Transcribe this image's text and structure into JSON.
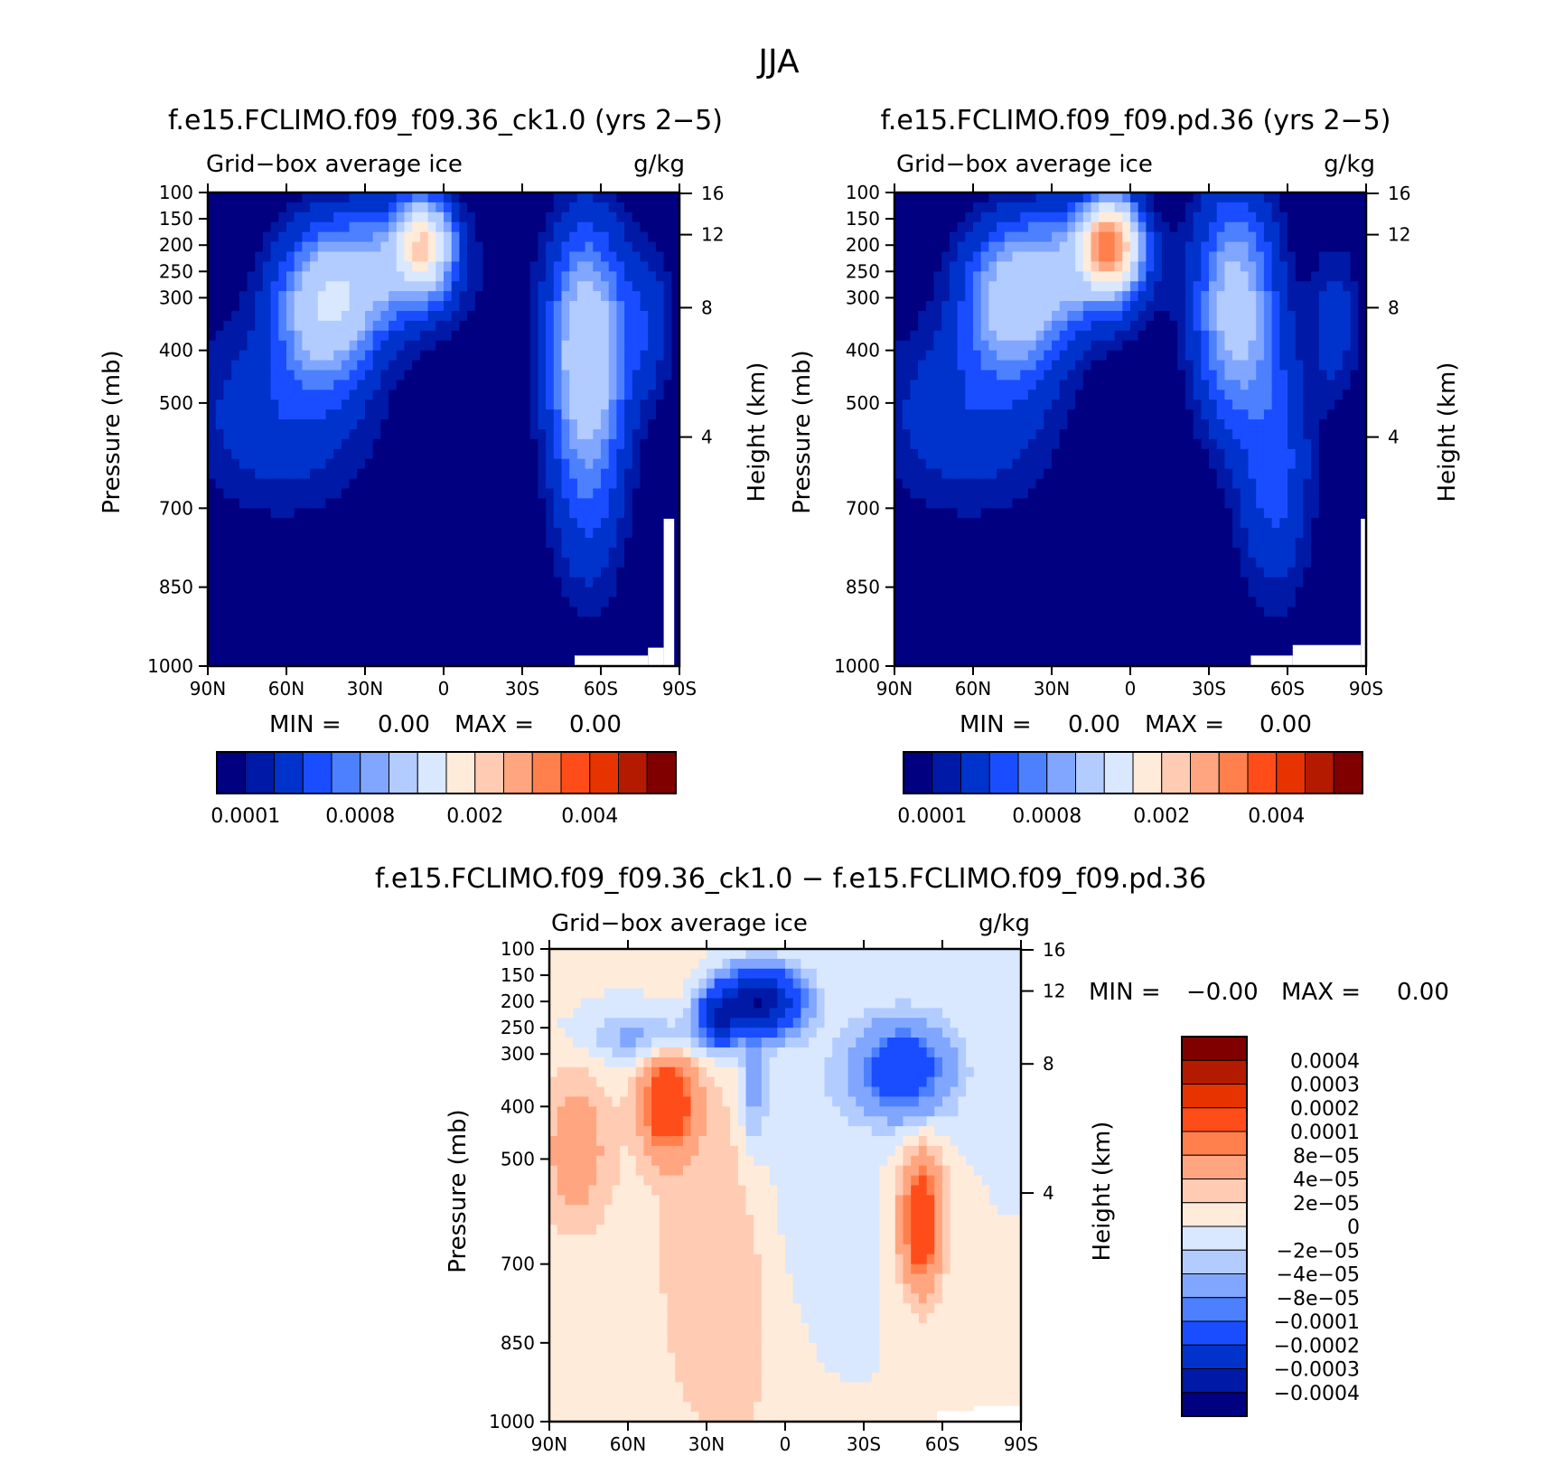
{
  "figure": {
    "title": "JJA",
    "colors": {
      "abs_levels": [
        "#000080",
        "#0019a6",
        "#0033cc",
        "#1a4dff",
        "#4d80ff",
        "#80a6ff",
        "#b3ccff",
        "#d9e8ff",
        "#ffebd9",
        "#ffccb3",
        "#ffa680",
        "#ff7f4d",
        "#ff4d1a",
        "#e63300",
        "#b31a00",
        "#800000"
      ],
      "diff_levels": [
        "#000080",
        "#0019a6",
        "#0033cc",
        "#1a4dff",
        "#4d80ff",
        "#80a6ff",
        "#b3ccff",
        "#d9e8ff",
        "#ffebd9",
        "#ffccb3",
        "#ffa680",
        "#ff7f4d",
        "#ff4d1a",
        "#e63300",
        "#b31a00",
        "#800000"
      ]
    }
  },
  "chart_data": [
    {
      "type": "heatmap",
      "title": "f.e15.FCLIMO.f09_f09.36_ck1.0 (yrs 2−5)",
      "variable": "Grid−box average ice",
      "units": "g/kg",
      "ylabel": "Pressure (mb)",
      "y2label": "Height (km)",
      "xticks": [
        "90N",
        "60N",
        "30N",
        "0",
        "30S",
        "60S",
        "90S"
      ],
      "yticks": [
        "100",
        "150",
        "200",
        "250",
        "300",
        "400",
        "500",
        "700",
        "850",
        "1000"
      ],
      "ylim": [
        1000,
        100
      ],
      "y2ticks": [
        "16",
        "12",
        "8",
        "4"
      ],
      "min_label": "MIN =",
      "min_value": "0.00",
      "max_label": "MAX =",
      "max_value": "0.00",
      "colorbar_labels": [
        "0.0001",
        "0.0008",
        "0.002",
        "0.004"
      ],
      "features": [
        {
          "lat": 8,
          "p": 200,
          "peak": 0.0022
        },
        {
          "lat": 45,
          "p": 330,
          "peak": 0.0012
        },
        {
          "lat": -55,
          "p": 380,
          "peak": 0.0013
        }
      ]
    },
    {
      "type": "heatmap",
      "title": "f.e15.FCLIMO.f09_f09.pd.36 (yrs 2−5)",
      "variable": "Grid−box average ice",
      "units": "g/kg",
      "ylabel": "Pressure (mb)",
      "y2label": "Height (km)",
      "xticks": [
        "90N",
        "60N",
        "30N",
        "0",
        "30S",
        "60S",
        "90S"
      ],
      "yticks": [
        "100",
        "150",
        "200",
        "250",
        "300",
        "400",
        "500",
        "700",
        "850",
        "1000"
      ],
      "ylim": [
        1000,
        100
      ],
      "y2ticks": [
        "16",
        "12",
        "8",
        "4"
      ],
      "min_label": "MIN =",
      "min_value": "0.00",
      "max_label": "MAX =",
      "max_value": "0.00",
      "colorbar_labels": [
        "0.0001",
        "0.0008",
        "0.002",
        "0.004"
      ],
      "features": [
        {
          "lat": 8,
          "p": 200,
          "peak": 0.0035
        },
        {
          "lat": 45,
          "p": 320,
          "peak": 0.001
        },
        {
          "lat": -40,
          "p": 320,
          "peak": 0.0012
        }
      ]
    },
    {
      "type": "heatmap",
      "title": "f.e15.FCLIMO.f09_f09.36_ck1.0 − f.e15.FCLIMO.f09_f09.pd.36",
      "variable": "Grid−box average ice",
      "units": "g/kg",
      "ylabel": "Pressure (mb)",
      "y2label": "Height (km)",
      "xticks": [
        "90N",
        "60N",
        "30N",
        "0",
        "30S",
        "60S",
        "90S"
      ],
      "yticks": [
        "100",
        "150",
        "200",
        "250",
        "300",
        "400",
        "500",
        "700",
        "850",
        "1000"
      ],
      "ylim": [
        1000,
        100
      ],
      "y2ticks": [
        "16",
        "12",
        "8",
        "4"
      ],
      "min_label": "MIN =",
      "min_value": "−0.00",
      "max_label": "MAX =",
      "max_value": "0.00",
      "colorbar_labels": [
        "0.0004",
        "0.0003",
        "0.0002",
        "0.0001",
        "8e−05",
        "4e−05",
        "2e−05",
        "0",
        "−2e−05",
        "−4e−05",
        "−8e−05",
        "−0.0001",
        "−0.0002",
        "−0.0003",
        "−0.0004"
      ],
      "features": [
        {
          "lat": 10,
          "p": 200,
          "peak": -0.0004
        },
        {
          "lat": -45,
          "p": 330,
          "peak": -0.00015
        },
        {
          "lat": 45,
          "p": 390,
          "peak": 0.00015
        },
        {
          "lat": 80,
          "p": 480,
          "peak": 6e-05
        },
        {
          "lat": -52,
          "p": 620,
          "peak": 0.00015
        }
      ]
    }
  ]
}
